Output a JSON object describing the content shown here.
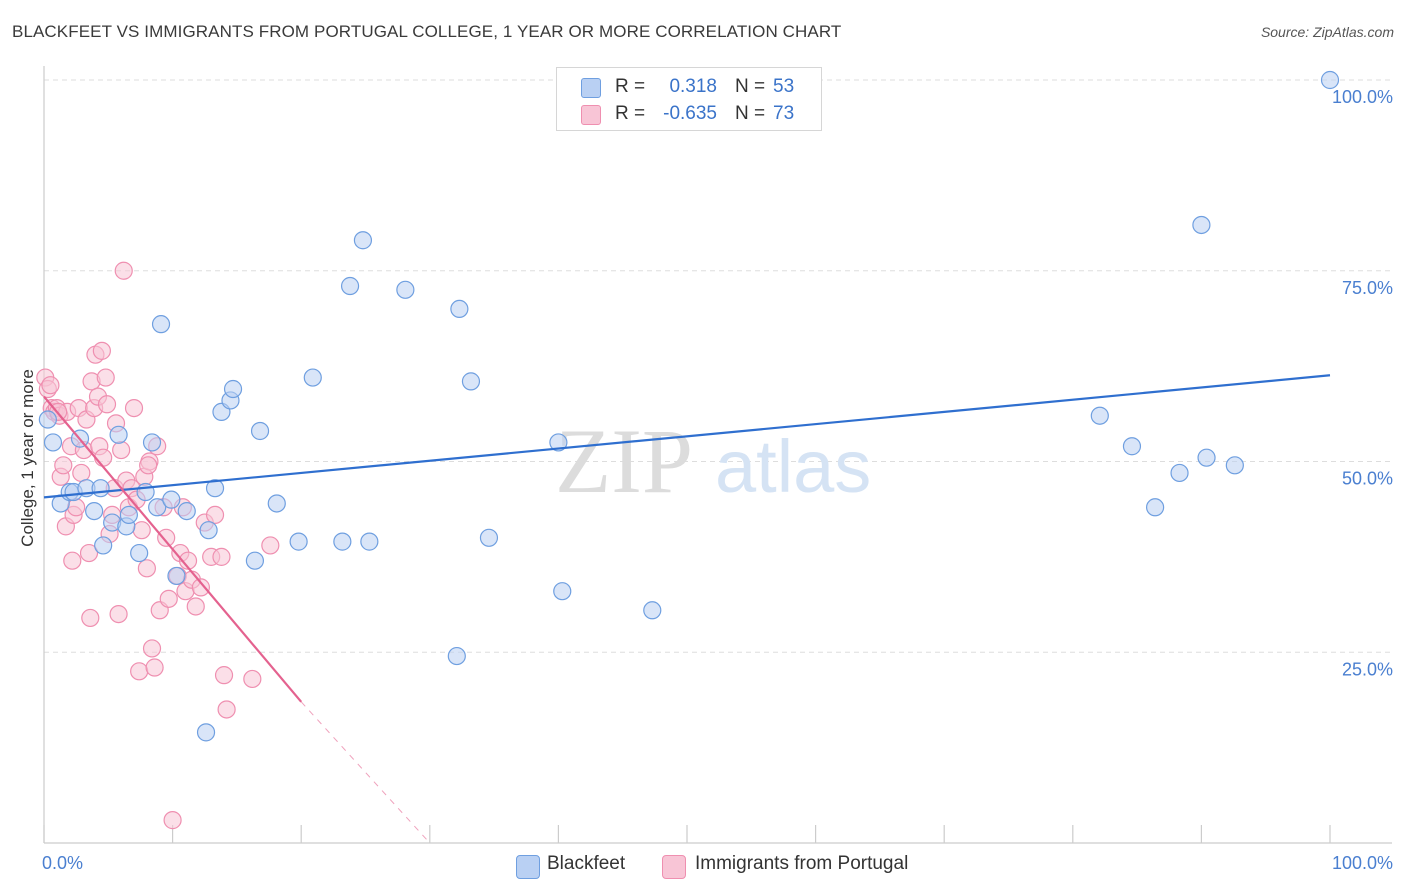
{
  "title": "BLACKFEET VS IMMIGRANTS FROM PORTUGAL COLLEGE, 1 YEAR OR MORE CORRELATION CHART",
  "source": "Source: ZipAtlas.com",
  "watermark": {
    "zip": "ZIP",
    "atlas": "atlas"
  },
  "colors": {
    "blue": "#6f9fe0",
    "blue_fill": "#b9d0f3",
    "blue_line": "#2f6fcf",
    "pink": "#ef8fb0",
    "pink_fill": "#f8c5d6",
    "pink_line": "#e4628f",
    "axis_label": "#4a7fd0"
  },
  "legend": {
    "rows": [
      {
        "r_label": "R =",
        "r_value": "0.318",
        "n_label": "N =",
        "n_value": "53"
      },
      {
        "r_label": "R =",
        "r_value": "-0.635",
        "n_label": "N =",
        "n_value": "73"
      }
    ]
  },
  "bottom_legend": {
    "series_a": "Blackfeet",
    "series_b": "Immigrants from Portugal"
  },
  "chart_data": {
    "type": "scatter",
    "title": "BLACKFEET VS IMMIGRANTS FROM PORTUGAL COLLEGE, 1 YEAR OR MORE CORRELATION CHART",
    "xlabel": "",
    "ylabel": "College, 1 year or more",
    "xlim": [
      0,
      100
    ],
    "ylim": [
      0,
      100
    ],
    "x_tick_labels": [
      "0.0%",
      "100.0%"
    ],
    "y_ticks": [
      25,
      50,
      75,
      100
    ],
    "y_tick_labels": [
      "25.0%",
      "50.0%",
      "75.0%",
      "100.0%"
    ],
    "grid": true,
    "legend_position": "top-center",
    "series": [
      {
        "name": "Blackfeet",
        "color": "#6f9fe0",
        "points": [
          [
            0.3,
            55.5
          ],
          [
            0.7,
            52.5
          ],
          [
            1.3,
            44.5
          ],
          [
            2,
            46
          ],
          [
            2.3,
            46
          ],
          [
            2.8,
            53
          ],
          [
            3.3,
            46.5
          ],
          [
            3.9,
            43.5
          ],
          [
            4.4,
            46.5
          ],
          [
            4.6,
            39
          ],
          [
            5.3,
            42
          ],
          [
            5.8,
            53.5
          ],
          [
            6.4,
            41.5
          ],
          [
            6.6,
            43
          ],
          [
            7.4,
            38
          ],
          [
            7.9,
            46
          ],
          [
            8.4,
            52.5
          ],
          [
            8.8,
            44
          ],
          [
            9.1,
            68
          ],
          [
            9.9,
            45
          ],
          [
            10.3,
            35
          ],
          [
            11.1,
            43.5
          ],
          [
            12.6,
            14.5
          ],
          [
            12.8,
            41
          ],
          [
            13.3,
            46.5
          ],
          [
            13.8,
            56.5
          ],
          [
            14.5,
            58
          ],
          [
            14.7,
            59.5
          ],
          [
            16.4,
            37
          ],
          [
            16.8,
            54
          ],
          [
            18.1,
            44.5
          ],
          [
            19.8,
            39.5
          ],
          [
            20.9,
            61
          ],
          [
            23.2,
            39.5
          ],
          [
            23.8,
            73
          ],
          [
            24.8,
            79
          ],
          [
            25.3,
            39.5
          ],
          [
            28.1,
            72.5
          ],
          [
            32.1,
            24.5
          ],
          [
            32.3,
            70
          ],
          [
            33.2,
            60.5
          ],
          [
            34.6,
            40
          ],
          [
            40,
            52.5
          ],
          [
            40.3,
            33
          ],
          [
            47.3,
            30.5
          ],
          [
            82.1,
            56
          ],
          [
            84.6,
            52
          ],
          [
            86.4,
            44
          ],
          [
            88.3,
            48.5
          ],
          [
            90,
            81
          ],
          [
            90.4,
            50.5
          ],
          [
            92.6,
            49.5
          ],
          [
            100,
            100
          ]
        ]
      },
      {
        "name": "Immigrants from Portugal",
        "color": "#ef8fb0",
        "points": [
          [
            0.1,
            61
          ],
          [
            0.3,
            59.5
          ],
          [
            0.5,
            60
          ],
          [
            0.6,
            57
          ],
          [
            0.8,
            56.5
          ],
          [
            1,
            57
          ],
          [
            1.2,
            56
          ],
          [
            1.3,
            48
          ],
          [
            1.5,
            49.5
          ],
          [
            1.7,
            41.5
          ],
          [
            1.8,
            56.5
          ],
          [
            2.1,
            52
          ],
          [
            2.2,
            37
          ],
          [
            2.3,
            43
          ],
          [
            2.5,
            44
          ],
          [
            2.7,
            57
          ],
          [
            2.9,
            48.5
          ],
          [
            3.1,
            51.5
          ],
          [
            3.3,
            55.5
          ],
          [
            3.5,
            38
          ],
          [
            3.6,
            29.5
          ],
          [
            3.7,
            60.5
          ],
          [
            3.9,
            57
          ],
          [
            4,
            64
          ],
          [
            4.2,
            58.5
          ],
          [
            4.3,
            52
          ],
          [
            4.5,
            64.5
          ],
          [
            4.6,
            50.5
          ],
          [
            4.8,
            61
          ],
          [
            4.9,
            57.5
          ],
          [
            5.1,
            40.5
          ],
          [
            5.3,
            43
          ],
          [
            5.5,
            46.5
          ],
          [
            5.6,
            55
          ],
          [
            5.8,
            30
          ],
          [
            6,
            51.5
          ],
          [
            6.2,
            75
          ],
          [
            6.4,
            47.5
          ],
          [
            6.6,
            44
          ],
          [
            6.8,
            46.5
          ],
          [
            7,
            57
          ],
          [
            7.2,
            45
          ],
          [
            7.4,
            22.5
          ],
          [
            7.6,
            41
          ],
          [
            7.8,
            48
          ],
          [
            8,
            36
          ],
          [
            8.2,
            50
          ],
          [
            8.4,
            25.5
          ],
          [
            8.6,
            23
          ],
          [
            8.8,
            52
          ],
          [
            9,
            30.5
          ],
          [
            9.3,
            44
          ],
          [
            9.5,
            40
          ],
          [
            9.7,
            32
          ],
          [
            10,
            3
          ],
          [
            10.4,
            35
          ],
          [
            10.6,
            38
          ],
          [
            10.8,
            44
          ],
          [
            11,
            33
          ],
          [
            11.2,
            37
          ],
          [
            11.5,
            34.5
          ],
          [
            11.8,
            31
          ],
          [
            12.2,
            33.5
          ],
          [
            12.5,
            42
          ],
          [
            13,
            37.5
          ],
          [
            13.3,
            43
          ],
          [
            13.8,
            37.5
          ],
          [
            14,
            22
          ],
          [
            14.2,
            17.5
          ],
          [
            16.2,
            21.5
          ],
          [
            17.6,
            39
          ],
          [
            1.1,
            56.5
          ],
          [
            8.1,
            49.5
          ]
        ]
      }
    ],
    "trendlines": [
      {
        "series": "Blackfeet",
        "x": [
          0,
          100
        ],
        "y": [
          45.3,
          61.3
        ],
        "style": "solid"
      },
      {
        "series": "Immigrants from Portugal",
        "x": [
          0,
          20
        ],
        "y": [
          58.5,
          18.5
        ],
        "style": "solid"
      },
      {
        "series": "Immigrants from Portugal",
        "x": [
          20,
          30
        ],
        "y": [
          18.5,
          0
        ],
        "style": "dashed"
      }
    ]
  }
}
